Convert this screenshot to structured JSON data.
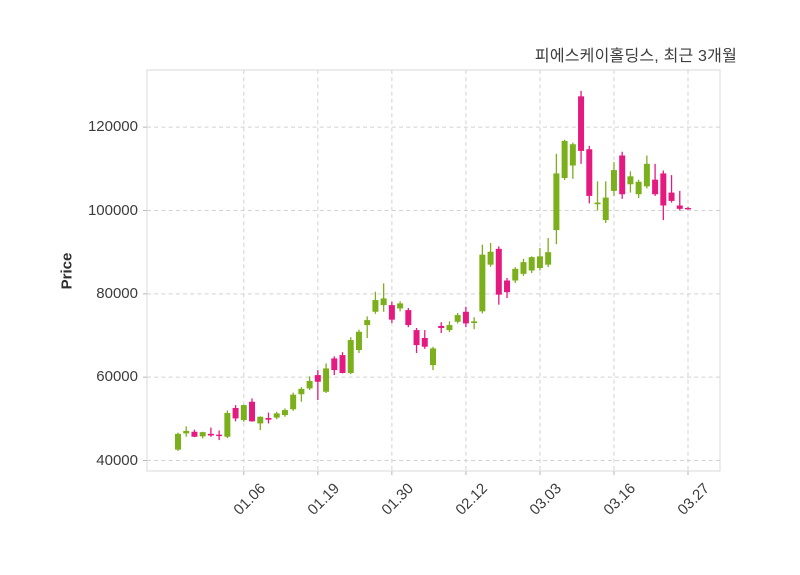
{
  "header": {
    "title": "피에스케이홀딩스, 최근 3개월"
  },
  "axes": {
    "ylabel": "Price",
    "y_tick_labels": [
      "40000",
      "60000",
      "80000",
      "100000",
      "120000"
    ],
    "x_tick_labels": [
      "01.06",
      "01.19",
      "01.30",
      "02.12",
      "03.03",
      "03.16",
      "03.27"
    ]
  },
  "colors": {
    "up": "#7caf1c",
    "down": "#e51a81",
    "grid": "#d2d2d2",
    "spine": "#d8d8d8",
    "tick_mark": "#b5b5b5",
    "text": "#3c3c3c",
    "background": "#ffffff"
  },
  "chart_data": {
    "type": "candlestick",
    "title": "피에스케이홀딩스, 최근 3개월",
    "ylabel": "Price",
    "xlabel": "",
    "legend": "none",
    "grid": true,
    "grid_style": "dashed",
    "ylim": [
      37480,
      133720
    ],
    "y_tick_values": [
      40000,
      60000,
      80000,
      100000,
      120000
    ],
    "x_tick_indices": [
      8,
      17,
      26,
      35,
      44,
      53,
      62
    ],
    "x_tick_labels": [
      "01.06",
      "01.19",
      "01.30",
      "02.12",
      "03.03",
      "03.16",
      "03.27"
    ],
    "up_color": "#7caf1c",
    "down_color": "#e51a81",
    "ohlc_order": [
      "open",
      "high",
      "low",
      "close"
    ],
    "candles": [
      [
        42600,
        46700,
        42300,
        46400
      ],
      [
        46500,
        48200,
        45700,
        47100
      ],
      [
        46900,
        47400,
        45600,
        45700
      ],
      [
        45800,
        46900,
        45300,
        46800
      ],
      [
        46400,
        47900,
        45700,
        46000
      ],
      [
        46200,
        47200,
        44900,
        46000
      ],
      [
        45700,
        52000,
        45400,
        51400
      ],
      [
        52600,
        53300,
        49400,
        50100
      ],
      [
        49700,
        53400,
        49300,
        53300
      ],
      [
        54100,
        54900,
        49300,
        49400
      ],
      [
        48900,
        50600,
        47300,
        50500
      ],
      [
        50200,
        51500,
        48900,
        49800
      ],
      [
        50300,
        51700,
        49900,
        51300
      ],
      [
        50900,
        52500,
        50500,
        52100
      ],
      [
        52300,
        56300,
        51900,
        55800
      ],
      [
        55900,
        57600,
        54100,
        57200
      ],
      [
        57300,
        60200,
        56900,
        59100
      ],
      [
        60500,
        61700,
        54500,
        58900
      ],
      [
        56500,
        63300,
        56200,
        62100
      ],
      [
        64500,
        65000,
        60500,
        61700
      ],
      [
        65300,
        66000,
        60900,
        61000
      ],
      [
        61000,
        69600,
        60700,
        68900
      ],
      [
        66500,
        71400,
        65800,
        70900
      ],
      [
        72500,
        74600,
        69400,
        73700
      ],
      [
        75700,
        80500,
        75200,
        78500
      ],
      [
        77300,
        82500,
        75700,
        78900
      ],
      [
        77300,
        78100,
        73000,
        73800
      ],
      [
        76500,
        78200,
        75800,
        77700
      ],
      [
        76100,
        76600,
        72000,
        72500
      ],
      [
        71300,
        71800,
        65800,
        67700
      ],
      [
        69400,
        71300,
        66800,
        67300
      ],
      [
        62900,
        67300,
        61700,
        66900
      ],
      [
        72300,
        73200,
        70600,
        71800
      ],
      [
        71300,
        73400,
        70800,
        72500
      ],
      [
        73300,
        75400,
        72900,
        74900
      ],
      [
        75700,
        76900,
        72000,
        72900
      ],
      [
        73000,
        74400,
        71500,
        73400
      ],
      [
        75800,
        91800,
        75300,
        89400
      ],
      [
        87000,
        92200,
        86500,
        90100
      ],
      [
        90800,
        91400,
        77400,
        79800
      ],
      [
        83200,
        83800,
        79000,
        80400
      ],
      [
        83200,
        86400,
        82600,
        86000
      ],
      [
        84800,
        88400,
        84300,
        87600
      ],
      [
        85600,
        89000,
        85000,
        88800
      ],
      [
        86200,
        91000,
        85600,
        89000
      ],
      [
        87000,
        93400,
        86400,
        90000
      ],
      [
        95300,
        113600,
        91900,
        108900
      ],
      [
        107800,
        117000,
        107300,
        116700
      ],
      [
        110800,
        116300,
        107600,
        115900
      ],
      [
        127400,
        128700,
        111200,
        114300
      ],
      [
        114700,
        115500,
        101700,
        103500
      ],
      [
        101500,
        107000,
        100000,
        101900
      ],
      [
        97700,
        107000,
        97000,
        103100
      ],
      [
        104700,
        111600,
        103500,
        109700
      ],
      [
        113200,
        114100,
        102800,
        103900
      ],
      [
        106300,
        109400,
        104300,
        108200
      ],
      [
        103900,
        107400,
        103000,
        106900
      ],
      [
        105800,
        113200,
        105300,
        111200
      ],
      [
        107400,
        111200,
        103500,
        103900
      ],
      [
        108900,
        109600,
        97700,
        101200
      ],
      [
        104300,
        108500,
        101900,
        102300
      ],
      [
        101200,
        104700,
        100000,
        100400
      ],
      [
        100600,
        100900,
        100200,
        100500
      ]
    ]
  }
}
